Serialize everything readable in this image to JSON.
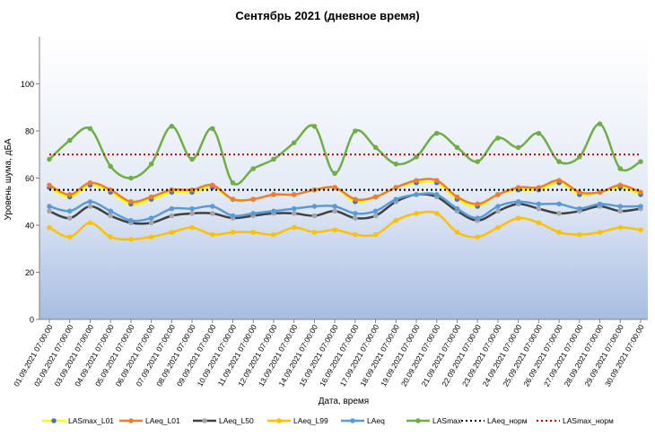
{
  "chart_data": {
    "type": "line",
    "title": "Сентябрь 2021 (дневное время)",
    "xlabel": "Дата, время",
    "ylabel": "Уровень шума, дБА",
    "ylim": [
      0,
      120
    ],
    "yticks": [
      0,
      20,
      40,
      60,
      80,
      100
    ],
    "grid": false,
    "legend_position": "bottom",
    "categories": [
      "01.09.2021 07:00:00",
      "02.09.2021 07:00:00",
      "03.09.2021 07:00:00",
      "04.09.2021 07:00:00",
      "05.09.2021 07:00:00",
      "06.09.2021 07:00:00",
      "07.09.2021 07:00:00",
      "08.09.2021 07:00:00",
      "09.09.2021 07:00:00",
      "10.09.2021 07:00:00",
      "11.09.2021 07:00:00",
      "12.09.2021 07:00:00",
      "13.09.2021 07:00:00",
      "14.09.2021 07:00:00",
      "15.09.2021 07:00:00",
      "16.09.2021 07:00:00",
      "17.09.2021 07:00:00",
      "18.09.2021 07:00:00",
      "19.09.2021 07:00:00",
      "20.09.2021 07:00:00",
      "21.09.2021 07:00:00",
      "22.09.2021 07:00:00",
      "23.09.2021 07:00:00",
      "24.09.2021 07:00:00",
      "25.09.2021 07:00:00",
      "26.09.2021 07:00:00",
      "27.09.2021 07:00:00",
      "28.09.2021 07:00:00",
      "29.09.2021 07:00:00",
      "30.09.2021 07:00:00"
    ],
    "series": [
      {
        "name": "LASmax_L01",
        "color": "#ffff00",
        "dash": "",
        "marker": "#4a72c4",
        "values": [
          56,
          52,
          57,
          54,
          49,
          51,
          54,
          54,
          56,
          51,
          51,
          53,
          53,
          55,
          56,
          50,
          52,
          56,
          58,
          58,
          51,
          48,
          53,
          55,
          55,
          58,
          53,
          54,
          56,
          53
        ]
      },
      {
        "name": "LAeq_L01",
        "color": "#ed7d31",
        "dash": "",
        "marker": "#ed7d31",
        "values": [
          57,
          53,
          58,
          55,
          50,
          52,
          55,
          55,
          57,
          51,
          51,
          53,
          53,
          55,
          56,
          51,
          52,
          56,
          59,
          59,
          52,
          49,
          53,
          56,
          56,
          59,
          54,
          54,
          57,
          54
        ]
      },
      {
        "name": "LAeq_L50",
        "color": "#404040",
        "dash": "",
        "marker": "#a5a5a5",
        "values": [
          46,
          43,
          48,
          44,
          41,
          41,
          44,
          45,
          45,
          43,
          44,
          45,
          45,
          44,
          46,
          43,
          44,
          50,
          53,
          52,
          46,
          42,
          46,
          49,
          47,
          45,
          46,
          48,
          46,
          47
        ]
      },
      {
        "name": "LAeq_L99",
        "color": "#ffc000",
        "dash": "",
        "marker": "#ffc000",
        "values": [
          39,
          35,
          41,
          35,
          34,
          35,
          37,
          39,
          36,
          37,
          37,
          36,
          39,
          37,
          38,
          36,
          36,
          42,
          45,
          45,
          37,
          35,
          39,
          43,
          41,
          37,
          36,
          37,
          39,
          38
        ]
      },
      {
        "name": "LAeq",
        "color": "#5b9bd5",
        "dash": "",
        "marker": "#5b9bd5",
        "values": [
          48,
          46,
          50,
          46,
          42,
          43,
          47,
          47,
          48,
          44,
          45,
          46,
          47,
          48,
          48,
          45,
          46,
          51,
          53,
          53,
          47,
          43,
          48,
          50,
          49,
          49,
          47,
          49,
          48,
          48
        ]
      },
      {
        "name": "LASmax",
        "color": "#70ad47",
        "dash": "",
        "marker": "#70ad47",
        "values": [
          68,
          76,
          81,
          65,
          60,
          66,
          82,
          68,
          81,
          58,
          64,
          68,
          75,
          82,
          62,
          80,
          73,
          66,
          69,
          79,
          73,
          67,
          77,
          73,
          79,
          67,
          69,
          83,
          64,
          67
        ]
      },
      {
        "name": "LAeq_норм",
        "color": "#000000",
        "dash": "2,3",
        "marker": "",
        "values": [
          55,
          55,
          55,
          55,
          55,
          55,
          55,
          55,
          55,
          55,
          55,
          55,
          55,
          55,
          55,
          55,
          55,
          55,
          55,
          55,
          55,
          55,
          55,
          55,
          55,
          55,
          55,
          55,
          55,
          55
        ]
      },
      {
        "name": "LASmax_норм",
        "color": "#c00000",
        "dash": "2,3",
        "marker": "",
        "values": [
          70,
          70,
          70,
          70,
          70,
          70,
          70,
          70,
          70,
          70,
          70,
          70,
          70,
          70,
          70,
          70,
          70,
          70,
          70,
          70,
          70,
          70,
          70,
          70,
          70,
          70,
          70,
          70,
          70,
          70
        ]
      }
    ]
  }
}
